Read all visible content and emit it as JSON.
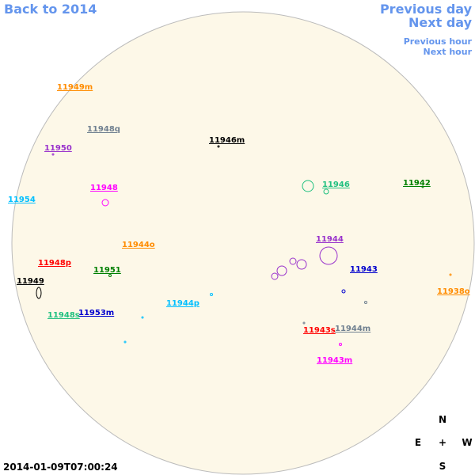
{
  "nav": {
    "back": "Back to 2014",
    "previous_day": "Previous day",
    "next_day": "Next day",
    "previous_hour": "Previous hour",
    "next_hour": "Next hour"
  },
  "regions": [
    {
      "label": "11949m",
      "color": "#ff8c00"
    },
    {
      "label": "11948q",
      "color": "#708090"
    },
    {
      "label": "11946m",
      "color": "#000000"
    },
    {
      "label": "11950",
      "color": "#9932cc"
    },
    {
      "label": "11946",
      "color": "#20c080"
    },
    {
      "label": "11942",
      "color": "#008000"
    },
    {
      "label": "11954",
      "color": "#00bfff"
    },
    {
      "label": "11948",
      "color": "#ff00ff"
    },
    {
      "label": "11944",
      "color": "#9932cc"
    },
    {
      "label": "11944o",
      "color": "#ff8c00"
    },
    {
      "label": "11948p",
      "color": "#ff0000"
    },
    {
      "label": "11951",
      "color": "#008000"
    },
    {
      "label": "11943",
      "color": "#0000cd"
    },
    {
      "label": "11949",
      "color": "#000000"
    },
    {
      "label": "11938o",
      "color": "#ff8c00"
    },
    {
      "label": "11944p",
      "color": "#00bfff"
    },
    {
      "label": "11953m",
      "color": "#0000cd"
    },
    {
      "label": "11948s",
      "color": "#20c080"
    },
    {
      "label": "11943s",
      "color": "#ff0000"
    },
    {
      "label": "11944m",
      "color": "#708090"
    },
    {
      "label": "11943m",
      "color": "#ff00ff"
    }
  ],
  "compass": {
    "north": "N",
    "east": "E",
    "center": "+",
    "west": "W",
    "south": "S"
  },
  "timestamp": "2014-01-09T07:00:24"
}
